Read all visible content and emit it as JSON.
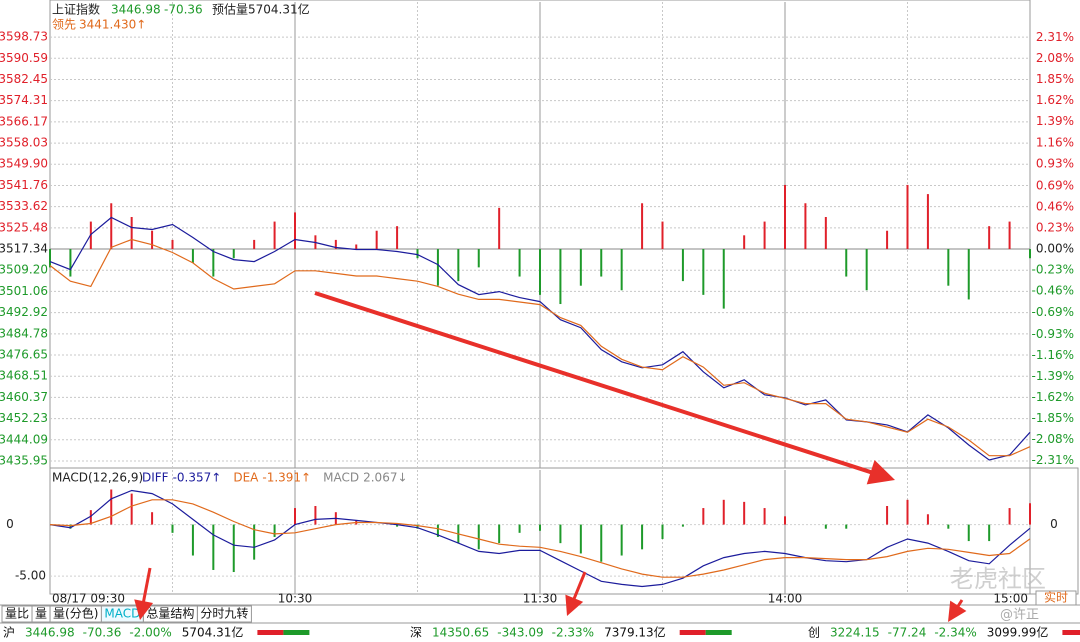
{
  "chart_data": [
    {
      "type": "line",
      "title": "上证指数",
      "last": 3446.98,
      "change": -70.36,
      "estimated_volume": "预估量5704.31亿",
      "leading_label": "领先",
      "leading_value": "3441.430↑",
      "x": [
        "09:30",
        "09:35",
        "09:40",
        "09:45",
        "09:50",
        "09:55",
        "10:00",
        "10:05",
        "10:10",
        "10:15",
        "10:20",
        "10:25",
        "10:30",
        "10:35",
        "10:40",
        "10:45",
        "10:50",
        "10:55",
        "11:00",
        "11:05",
        "11:10",
        "11:15",
        "11:20",
        "11:25",
        "11:30",
        "13:05",
        "13:10",
        "13:15",
        "13:20",
        "13:25",
        "13:30",
        "13:35",
        "13:40",
        "13:45",
        "13:50",
        "13:55",
        "14:00",
        "14:05",
        "14:10",
        "14:15",
        "14:20",
        "14:25",
        "14:30",
        "14:35",
        "14:40",
        "14:45",
        "14:50",
        "14:55",
        "15:00"
      ],
      "series": [
        {
          "color": "#1c1c9c",
          "values": [
            3512.53,
            3509.45,
            3522.92,
            3529.46,
            3525.61,
            3524.84,
            3526.77,
            3521.77,
            3516.38,
            3513.3,
            3512.53,
            3516.38,
            3521,
            3519.84,
            3517.92,
            3517.15,
            3517.15,
            3516.38,
            3515.22,
            3511.38,
            3503.68,
            3499.83,
            3500.99,
            3498.68,
            3497.14,
            3490.21,
            3487.13,
            3478.67,
            3474.05,
            3471.74,
            3472.89,
            3477.9,
            3470.2,
            3464.04,
            3467.12,
            3461.35,
            3460.2,
            3457.5,
            3459.42,
            3451.73,
            3450.96,
            3449.8,
            3447.11,
            3453.65,
            3448.65,
            3442.11,
            3436.34,
            3438.26,
            3446.98
          ]
        },
        {
          "color": "#e06a1c",
          "values": [
            3511,
            3505,
            3503,
            3518,
            3521,
            3519,
            3516,
            3512,
            3506,
            3502,
            3503,
            3504,
            3509,
            3509,
            3508,
            3507,
            3507,
            3506,
            3505,
            3503,
            3500,
            3498,
            3498,
            3497,
            3496,
            3491,
            3488,
            3480,
            3475,
            3472,
            3471,
            3476,
            3472,
            3465,
            3466,
            3462,
            3460,
            3458,
            3458,
            3452,
            3451,
            3449,
            3447,
            3452,
            3449,
            3444,
            3438,
            3438,
            3441.43
          ]
        },
        {
          "type": "bar",
          "axis": "y2",
          "values": [
            -0.2,
            -0.3,
            0.3,
            0.5,
            0.35,
            0.2,
            0.1,
            -0.15,
            -0.3,
            -0.1,
            0.1,
            0.3,
            0.4,
            0.15,
            0.1,
            0.05,
            0.2,
            0.25,
            -0.1,
            -0.4,
            -0.35,
            -0.2,
            0.45,
            -0.3,
            -0.5,
            -0.6,
            -0.4,
            -0.3,
            -0.45,
            0.5,
            0.3,
            -0.35,
            -0.5,
            -0.65,
            0.15,
            0.3,
            0.7,
            0.5,
            0.35,
            -0.3,
            -0.45,
            0.2,
            0.7,
            0.6,
            -0.4,
            -0.55,
            0.25,
            0.3,
            -0.1
          ]
        }
      ],
      "up_color": "#e0202a",
      "down_color": "#1e9a2a",
      "flat_color": "#222222",
      "ylim": [
        3433.26,
        3612.2
      ],
      "yticks": [
        3598.73,
        3590.59,
        3582.45,
        3574.31,
        3566.17,
        3558.03,
        {
          "value": 3549.9,
          "label": "3549.90"
        },
        3541.76,
        3533.62,
        3525.48,
        3517.34,
        {
          "value": 3509.2,
          "label": "3509.20"
        },
        3501.06,
        3492.92,
        3484.78,
        3476.65,
        3468.51,
        3460.37,
        3452.23,
        3444.09,
        3435.95
      ],
      "y2lim": [
        -2.39,
        2.697
      ],
      "y2ticks": [
        {
          "value": 2.31,
          "label": "2.31%"
        },
        {
          "value": 2.08,
          "label": "2.08%"
        },
        {
          "value": 1.85,
          "label": "1.85%"
        },
        {
          "value": 1.62,
          "label": "1.62%"
        },
        {
          "value": 1.39,
          "label": "1.39%"
        },
        {
          "value": 1.16,
          "label": "1.16%"
        },
        {
          "value": 0.93,
          "label": "0.93%"
        },
        {
          "value": 0.69,
          "label": "0.69%"
        },
        {
          "value": 0.46,
          "label": "0.46%"
        },
        {
          "value": 0.23,
          "label": "0.23%"
        },
        {
          "value": 0,
          "label": "0.00%"
        },
        {
          "value": -0.23,
          "label": "-0.23%"
        },
        {
          "value": -0.46,
          "label": "-0.46%"
        },
        {
          "value": -0.69,
          "label": "-0.69%"
        },
        {
          "value": -0.93,
          "label": "-0.93%"
        },
        {
          "value": -1.16,
          "label": "-1.16%"
        },
        {
          "value": -1.39,
          "label": "-1.39%"
        },
        {
          "value": -1.62,
          "label": "-1.62%"
        },
        {
          "value": -1.85,
          "label": "-1.85%"
        },
        {
          "value": -2.08,
          "label": "-2.08%"
        },
        {
          "value": -2.31,
          "label": "-2.31%"
        }
      ],
      "grid": true
    },
    {
      "type": "macd",
      "title": "MACD(12,26,9)",
      "series": [
        {
          "name": "DIFF",
          "color": "#1c1c9c",
          "last_label": "-0.357↑",
          "values": [
            0,
            -0.3,
            0.8,
            2.5,
            3.3,
            3.0,
            2.0,
            0.5,
            -1.0,
            -2.0,
            -2.2,
            -1.5,
            0.0,
            0.5,
            0.6,
            0.4,
            0.2,
            0.0,
            -0.3,
            -1.0,
            -1.8,
            -2.6,
            -2.8,
            -2.5,
            -2.5,
            -3.5,
            -4.5,
            -5.5,
            -5.8,
            -6.0,
            -5.8,
            -5.2,
            -4.0,
            -3.2,
            -2.8,
            -2.6,
            -2.8,
            -3.2,
            -3.5,
            -3.6,
            -3.4,
            -2.2,
            -1.4,
            -1.8,
            -2.6,
            -3.5,
            -3.8,
            -2.0,
            -0.357
          ]
        },
        {
          "name": "DEA",
          "color": "#e06a1c",
          "last_label": "-1.391↑",
          "values": [
            0,
            -0.1,
            0.1,
            0.8,
            1.8,
            2.4,
            2.4,
            2.0,
            1.2,
            0.3,
            -0.5,
            -0.9,
            -0.8,
            -0.4,
            0.0,
            0.2,
            0.2,
            0.1,
            -0.1,
            -0.4,
            -0.9,
            -1.4,
            -1.9,
            -2.1,
            -2.2,
            -2.6,
            -3.1,
            -3.7,
            -4.3,
            -4.8,
            -5.1,
            -5.1,
            -4.8,
            -4.4,
            -3.9,
            -3.4,
            -3.2,
            -3.2,
            -3.3,
            -3.4,
            -3.4,
            -3.1,
            -2.6,
            -2.3,
            -2.4,
            -2.7,
            -3.0,
            -2.8,
            -1.391
          ]
        },
        {
          "name": "MACD",
          "type": "bar",
          "color": "#888888",
          "last_label": "2.067↓",
          "values": [
            0,
            -0.4,
            1.4,
            3.4,
            3.0,
            1.2,
            -0.8,
            -3.0,
            -4.4,
            -4.6,
            -3.4,
            -1.2,
            1.6,
            1.8,
            1.2,
            0.4,
            0.0,
            -0.2,
            -0.4,
            -1.2,
            -1.8,
            -2.4,
            -1.8,
            -0.8,
            -0.6,
            -1.8,
            -2.8,
            -3.6,
            -3.0,
            -2.4,
            -1.4,
            -0.2,
            1.6,
            2.4,
            2.2,
            1.6,
            0.8,
            0.0,
            -0.4,
            -0.4,
            0.0,
            1.8,
            2.4,
            1.0,
            -0.4,
            -1.6,
            -1.6,
            1.6,
            2.067
          ]
        }
      ],
      "ylim": [
        -6.73,
        5.29
      ],
      "yticks": [
        0,
        {
          "value": -5,
          "label": "-5.00"
        }
      ],
      "y2lim": [
        -6.73,
        5.29
      ],
      "y2ticks": [
        0
      ],
      "xticks": [
        "08/17 09:30",
        "10:30",
        "11:30",
        "14:00",
        "15:00"
      ]
    }
  ],
  "tabs": [
    "量比",
    "量",
    "量(分色)",
    "MACD",
    "总量结构",
    "分时九转"
  ],
  "active_tab": 3,
  "mode_button": "实时",
  "status_bar": [
    {
      "market": "沪",
      "price": 3446.98,
      "change": -70.36,
      "pct": "-2.00%",
      "amount": "5704.31亿"
    },
    {
      "market": "深",
      "price": 14350.65,
      "change": -343.09,
      "pct": "-2.33%",
      "amount": "7379.13亿"
    },
    {
      "market": "创",
      "price": 3224.15,
      "change": -77.24,
      "pct": "-2.34%",
      "amount": "3099.99亿"
    }
  ],
  "watermark": [
    "老虎社区",
    "@许正"
  ]
}
